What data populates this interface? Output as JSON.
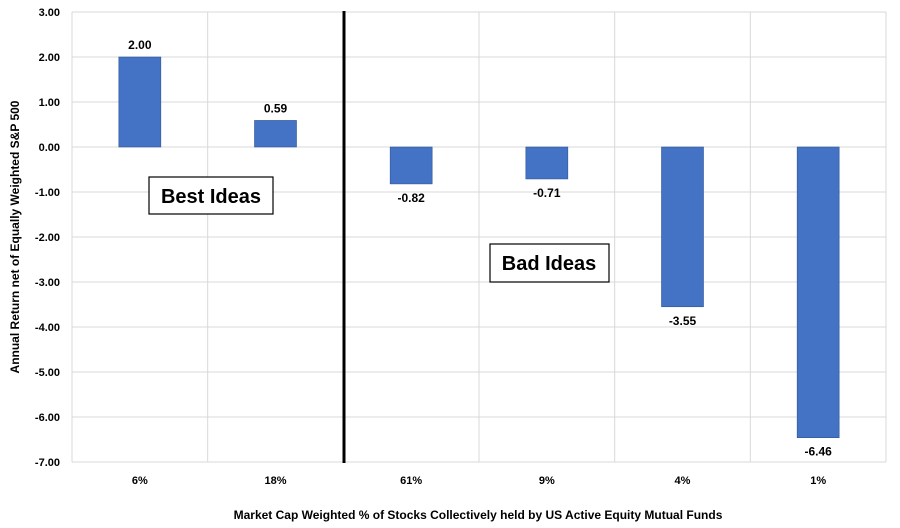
{
  "chart_data": {
    "type": "bar",
    "categories": [
      "6%",
      "18%",
      "61%",
      "9%",
      "4%",
      "1%"
    ],
    "values": [
      2.0,
      0.59,
      -0.82,
      -0.71,
      -3.55,
      -6.46
    ],
    "data_labels": [
      "2.00",
      "0.59",
      "-0.82",
      "-0.71",
      "-3.55",
      "-6.46"
    ],
    "ylim": [
      -7.0,
      3.0
    ],
    "yticks": [
      "3.00",
      "2.00",
      "1.00",
      "0.00",
      "-1.00",
      "-2.00",
      "-3.00",
      "-4.00",
      "-5.00",
      "-6.00",
      "-7.00"
    ],
    "ylabel": "Annual Return net of Equally Weighted S&P 500",
    "xlabel": "Market Cap Weighted % of Stocks Collectively held by US Active Equity Mutual Funds",
    "grid": true,
    "bar_color": "#4472C4",
    "annotations": [
      "Best Ideas",
      "Bad Ideas"
    ]
  }
}
